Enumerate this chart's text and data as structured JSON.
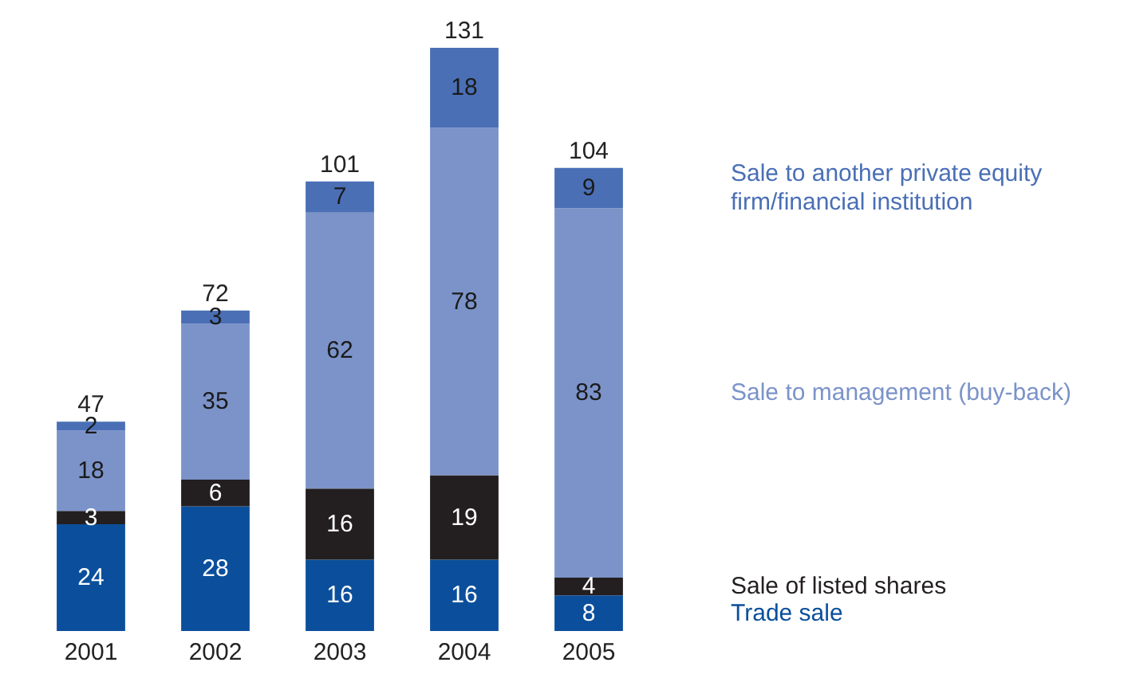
{
  "chart_data": {
    "type": "bar",
    "stacked": true,
    "categories": [
      "2001",
      "2002",
      "2003",
      "2004",
      "2005"
    ],
    "series": [
      {
        "name": "Trade sale",
        "color": "#0b4f9c",
        "values": [
          24,
          28,
          16,
          16,
          8
        ]
      },
      {
        "name": "Sale of listed shares",
        "color": "#231f20",
        "values": [
          3,
          6,
          16,
          19,
          4
        ]
      },
      {
        "name": "Sale to management (buy-back)",
        "color": "#7b93c9",
        "values": [
          18,
          35,
          62,
          78,
          83
        ]
      },
      {
        "name": "Sale to another private equity firm/financial institution",
        "color": "#4a6fb5",
        "values": [
          2,
          3,
          7,
          18,
          9
        ]
      }
    ],
    "data_labels": true,
    "totals": [
      "47",
      "72",
      "101",
      "131",
      "104"
    ],
    "legend": "right"
  }
}
